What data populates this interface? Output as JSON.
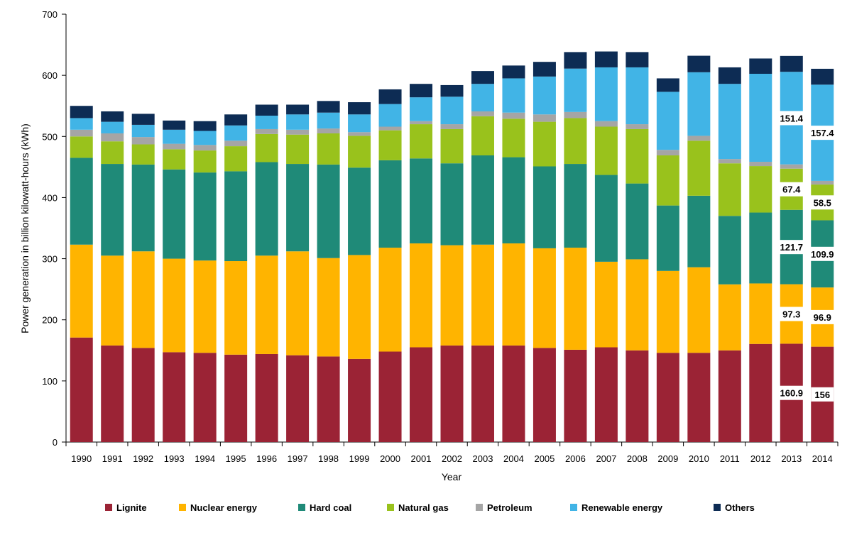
{
  "chart_data": {
    "type": "bar",
    "stacked": true,
    "title": "",
    "xlabel": "Year",
    "ylabel": "Power generation in billion kilowatt-hours (kWh)",
    "ylim": [
      0,
      700
    ],
    "yticks": [
      0,
      100,
      200,
      300,
      400,
      500,
      600,
      700
    ],
    "grid": false,
    "legend_position": "bottom",
    "categories": [
      "1990",
      "1991",
      "1992",
      "1993",
      "1994",
      "1995",
      "1996",
      "1997",
      "1998",
      "1999",
      "2000",
      "2001",
      "2002",
      "2003",
      "2004",
      "2005",
      "2006",
      "2007",
      "2008",
      "2009",
      "2010",
      "2011",
      "2012",
      "2013",
      "2014"
    ],
    "series": [
      {
        "name": "Lignite",
        "color": "#9b2335",
        "values": [
          171,
          158,
          154,
          147,
          146,
          143,
          144,
          142,
          140,
          136,
          148,
          155,
          158,
          158,
          158,
          154,
          151,
          155,
          150,
          146,
          146,
          150,
          160.5,
          160.9,
          156
        ]
      },
      {
        "name": "Nuclear energy",
        "color": "#ffb400",
        "values": [
          152,
          147,
          158,
          153,
          151,
          153,
          161,
          170,
          161,
          170,
          170,
          170,
          164,
          165,
          167,
          163,
          167,
          140,
          149,
          134,
          140,
          108,
          99,
          97.3,
          96.9
        ]
      },
      {
        "name": "Hard coal",
        "color": "#1f8a78",
        "values": [
          142,
          150,
          142,
          146,
          144,
          147,
          153,
          143,
          153,
          143,
          143,
          139,
          134,
          146,
          141,
          134,
          137,
          142,
          124,
          107,
          117,
          112,
          116,
          121.7,
          109.9
        ]
      },
      {
        "name": "Natural gas",
        "color": "#99c21c",
        "values": [
          35,
          37,
          33,
          33,
          36,
          41,
          46,
          48,
          51,
          52,
          49,
          56,
          56,
          64,
          63,
          73,
          75,
          79,
          89,
          82,
          90,
          86,
          76,
          67.4,
          58.5
        ]
      },
      {
        "name": "Petroleum",
        "color": "#a5a5a5",
        "values": [
          11,
          13,
          12,
          9,
          9,
          9,
          8,
          8,
          8,
          6,
          6,
          5,
          8,
          8,
          10,
          12,
          10,
          9,
          8,
          9,
          8,
          7,
          7,
          7,
          6
        ]
      },
      {
        "name": "Renewable energy",
        "color": "#41b4e6",
        "values": [
          19,
          19,
          20,
          23,
          23,
          25,
          22,
          25,
          26,
          29,
          37,
          39,
          45,
          45,
          56,
          62,
          71,
          88,
          93,
          95,
          104,
          123,
          144,
          151.4,
          157.4
        ]
      },
      {
        "name": "Others",
        "color": "#0d2c54",
        "values": [
          20,
          17,
          18,
          15,
          16,
          18,
          18,
          16,
          19,
          20,
          24,
          22,
          19,
          21,
          21,
          24,
          27,
          26,
          25,
          22,
          27,
          27,
          25,
          26,
          26
        ]
      }
    ],
    "data_labels": {
      "2013": [
        "160.9",
        "97.3",
        "121.7",
        "67.4",
        "",
        "151.4",
        ""
      ],
      "2014": [
        "156",
        "96.9",
        "109.9",
        "58.5",
        "",
        "157.4",
        ""
      ]
    }
  }
}
